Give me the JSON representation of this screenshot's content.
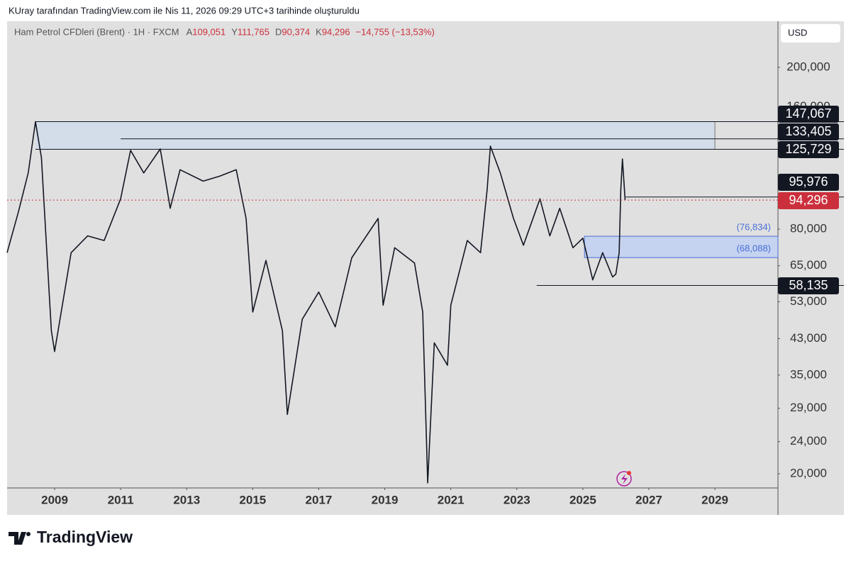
{
  "header": {
    "text": "KUray tarafından TradingView.com ile Nis 11, 2026 09:29 UTC+3 tarihinde oluşturuldu"
  },
  "chart_data": {
    "type": "line",
    "title": "Ham Petrol CFDleri (Brent) · 1H · FXCM",
    "ohlc": [
      {
        "key": "A",
        "value": "109,051"
      },
      {
        "key": "Y",
        "value": "111,765"
      },
      {
        "key": "D",
        "value": "90,374"
      },
      {
        "key": "K",
        "value": "94,296"
      }
    ],
    "change": "−14,755 (−13,53%)",
    "currency": "USD",
    "log_scale": true,
    "color": "#131722",
    "x": [
      2007.56,
      2007.9,
      2008.2,
      2008.42,
      2008.6,
      2008.9,
      2009.0,
      2009.5,
      2010.0,
      2010.5,
      2011.0,
      2011.3,
      2011.7,
      2012.2,
      2012.5,
      2012.8,
      2013.5,
      2014.0,
      2014.5,
      2014.8,
      2015.0,
      2015.4,
      2015.9,
      2016.05,
      2016.5,
      2017.0,
      2017.5,
      2018.0,
      2018.8,
      2018.95,
      2019.3,
      2019.9,
      2020.15,
      2020.3,
      2020.5,
      2020.9,
      2021.0,
      2021.5,
      2021.9,
      2022.1,
      2022.2,
      2022.5,
      2022.9,
      2023.2,
      2023.7,
      2024.0,
      2024.3,
      2024.7,
      2025.0,
      2025.3,
      2025.6,
      2025.9,
      2026.0,
      2026.1,
      2026.15,
      2026.2,
      2026.28
    ],
    "values": [
      70,
      88,
      110,
      147,
      120,
      45,
      40,
      70,
      77,
      75,
      95,
      125,
      110,
      126,
      90,
      112,
      105,
      108,
      112,
      85,
      50,
      67,
      45,
      28,
      48,
      56,
      46,
      68,
      85,
      52,
      72,
      66,
      50,
      19,
      42,
      37,
      52,
      75,
      70,
      100,
      128,
      110,
      85,
      73,
      95,
      77,
      90,
      72,
      76,
      60,
      70,
      61,
      62,
      70,
      100,
      119,
      94.296
    ],
    "xlim": [
      2007.56,
      2030.91
    ],
    "xticks": [
      2009,
      2011,
      2013,
      2015,
      2017,
      2019,
      2021,
      2023,
      2025,
      2027,
      2029
    ],
    "ylim": [
      18.46,
      259.7
    ],
    "yticks": [
      {
        "value": 200,
        "label": "200,000"
      },
      {
        "value": 160,
        "label": "160,000"
      },
      {
        "value": 80,
        "label": "80,000"
      },
      {
        "value": 65,
        "label": "65,000"
      },
      {
        "value": 53,
        "label": "53,000"
      },
      {
        "value": 43,
        "label": "43,000"
      },
      {
        "value": 35,
        "label": "35,000"
      },
      {
        "value": 29,
        "label": "29,000"
      },
      {
        "value": 24,
        "label": "24,000"
      },
      {
        "value": 20,
        "label": "20,000"
      }
    ],
    "levels": [
      {
        "value": 147.067,
        "label": "147,067",
        "color": "#131722"
      },
      {
        "value": 133.405,
        "label": "133,405",
        "color": "#131722"
      },
      {
        "value": 125.729,
        "label": "125,729",
        "color": "#131722"
      },
      {
        "value": 95.976,
        "label": "95,976",
        "color": "#131722"
      },
      {
        "value": 94.296,
        "label": "94,296",
        "color": "#cc2f3c"
      },
      {
        "value": 58.135,
        "label": "58,135",
        "color": "#131722"
      },
      {
        "value": 76.834,
        "label": "(76,834)",
        "color": "#4a6fd8"
      },
      {
        "value": 68.088,
        "label": "(68,088)",
        "color": "#4a6fd8"
      }
    ]
  },
  "branding": {
    "text": "TradingView"
  }
}
